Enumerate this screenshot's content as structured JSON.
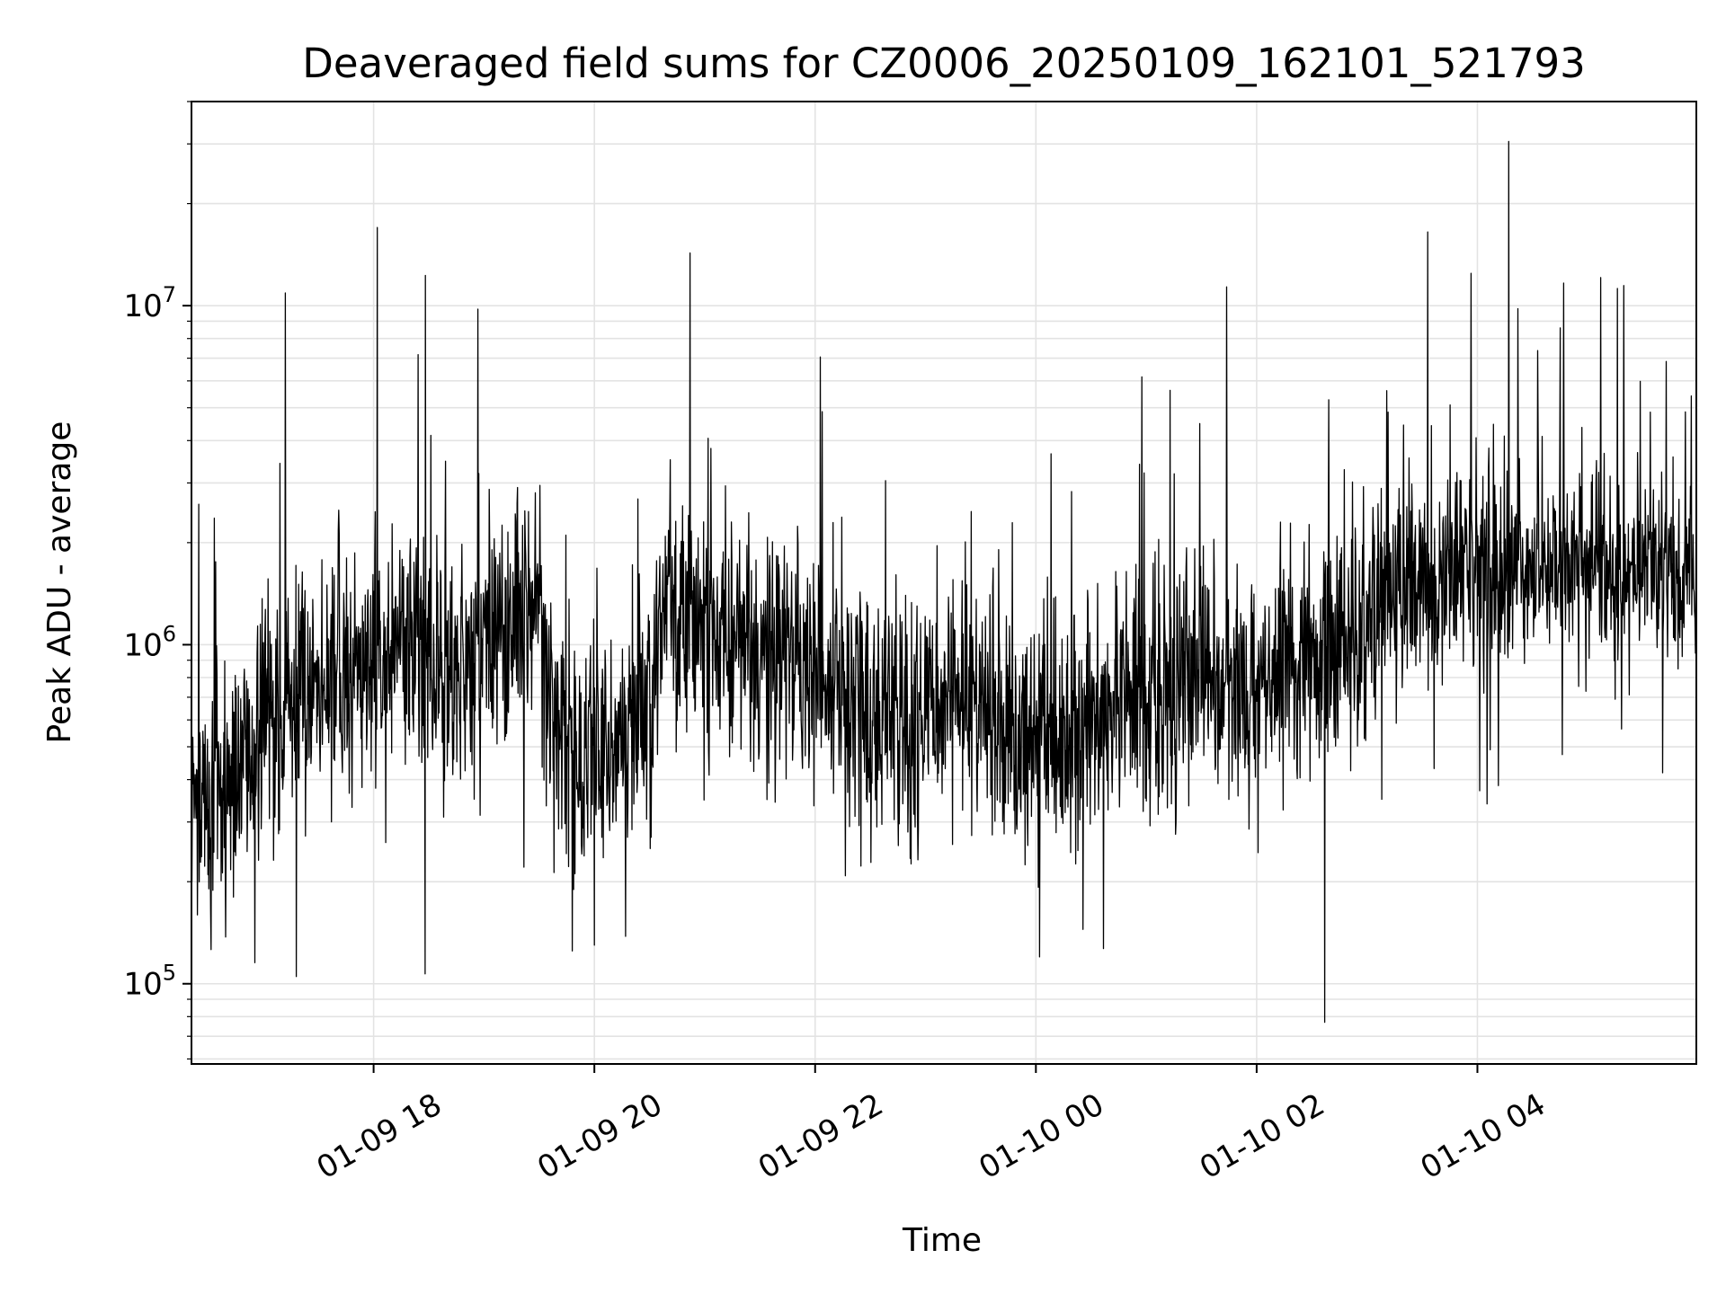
{
  "chart_data": {
    "type": "line",
    "title": "Deaveraged field sums for CZ0006_20250109_162101_521793",
    "xlabel": "Time",
    "ylabel": "Peak ADU - average",
    "yscale": "log",
    "xlim": [
      "2025-01-09 16:21",
      "2025-01-10 05:59"
    ],
    "ylim": [
      58000,
      40000000
    ],
    "grid": true,
    "grid_color": "#e3e3e3",
    "line_color": "#000000",
    "x_ticks": [
      {
        "value": "2025-01-09 18:00",
        "label": "01-09 18"
      },
      {
        "value": "2025-01-09 20:00",
        "label": "01-09 20"
      },
      {
        "value": "2025-01-09 22:00",
        "label": "01-09 22"
      },
      {
        "value": "2025-01-10 00:00",
        "label": "01-10 00"
      },
      {
        "value": "2025-01-10 02:00",
        "label": "01-10 02"
      },
      {
        "value": "2025-01-10 04:00",
        "label": "01-10 04"
      }
    ],
    "y_ticks": [
      {
        "value": 100000,
        "base": "10",
        "exp": "5"
      },
      {
        "value": 1000000,
        "base": "10",
        "exp": "6"
      },
      {
        "value": 10000000,
        "base": "10",
        "exp": "7"
      }
    ],
    "series": [
      {
        "x": [
          "2025-01-09 16:21",
          "2025-01-09 16:30",
          "2025-01-09 16:40",
          "2025-01-09 16:50",
          "2025-01-09 17:00",
          "2025-01-09 17:10",
          "2025-01-09 17:20",
          "2025-01-09 17:30",
          "2025-01-09 17:40",
          "2025-01-09 17:50",
          "2025-01-09 18:00",
          "2025-01-09 18:10",
          "2025-01-09 18:20",
          "2025-01-09 18:30",
          "2025-01-09 18:40",
          "2025-01-09 18:50",
          "2025-01-09 19:00",
          "2025-01-09 19:10",
          "2025-01-09 19:20",
          "2025-01-09 19:30",
          "2025-01-09 19:40",
          "2025-01-09 19:50",
          "2025-01-09 20:00",
          "2025-01-09 20:10",
          "2025-01-09 20:20",
          "2025-01-09 20:30",
          "2025-01-09 20:40",
          "2025-01-09 20:50",
          "2025-01-09 21:00",
          "2025-01-09 21:10",
          "2025-01-09 21:20",
          "2025-01-09 21:30",
          "2025-01-09 21:40",
          "2025-01-09 21:50",
          "2025-01-09 22:00",
          "2025-01-09 22:10",
          "2025-01-09 22:20",
          "2025-01-09 22:30",
          "2025-01-09 22:40",
          "2025-01-09 22:50",
          "2025-01-09 23:00",
          "2025-01-09 23:10",
          "2025-01-09 23:20",
          "2025-01-09 23:30",
          "2025-01-09 23:40",
          "2025-01-09 23:50",
          "2025-01-10 00:00",
          "2025-01-10 00:10",
          "2025-01-10 00:20",
          "2025-01-10 00:30",
          "2025-01-10 00:40",
          "2025-01-10 00:50",
          "2025-01-10 01:00",
          "2025-01-10 01:10",
          "2025-01-10 01:20",
          "2025-01-10 01:30",
          "2025-01-10 01:40",
          "2025-01-10 01:50",
          "2025-01-10 02:00",
          "2025-01-10 02:10",
          "2025-01-10 02:20",
          "2025-01-10 02:30",
          "2025-01-10 02:40",
          "2025-01-10 02:50",
          "2025-01-10 03:00",
          "2025-01-10 03:10",
          "2025-01-10 03:20",
          "2025-01-10 03:30",
          "2025-01-10 03:40",
          "2025-01-10 03:50",
          "2025-01-10 04:00",
          "2025-01-10 04:10",
          "2025-01-10 04:20",
          "2025-01-10 04:30",
          "2025-01-10 04:40",
          "2025-01-10 04:50",
          "2025-01-10 05:00",
          "2025-01-10 05:10",
          "2025-01-10 05:20",
          "2025-01-10 05:30",
          "2025-01-10 05:40",
          "2025-01-10 05:50",
          "2025-01-10 05:59"
        ],
        "y": [
          300000,
          350000,
          380000,
          420000,
          550000,
          600000,
          650000,
          700000,
          720000,
          800000,
          850000,
          900000,
          1000000,
          850000,
          800000,
          850000,
          900000,
          950000,
          1000000,
          1300000,
          550000,
          450000,
          500000,
          500000,
          550000,
          600000,
          1500000,
          1200000,
          1100000,
          1000000,
          950000,
          900000,
          900000,
          850000,
          800000,
          750000,
          700000,
          650000,
          600000,
          550000,
          650000,
          700000,
          750000,
          650000,
          550000,
          500000,
          500000,
          520000,
          550000,
          600000,
          650000,
          700000,
          650000,
          700000,
          800000,
          900000,
          850000,
          800000,
          750000,
          800000,
          900000,
          950000,
          1000000,
          1050000,
          1100000,
          1300000,
          1400000,
          1500000,
          1600000,
          1650000,
          1700000,
          1750000,
          1700000,
          1750000,
          1800000,
          1750000,
          1700000,
          1650000,
          1600000,
          1650000,
          1700000,
          1550000,
          1500000
        ],
        "peaks": [
          {
            "x": "2025-01-09 17:12",
            "y": 10900000
          },
          {
            "x": "2025-01-09 18:02",
            "y": 17000000
          },
          {
            "x": "2025-01-09 20:52",
            "y": 14300000
          },
          {
            "x": "2025-01-10 03:33",
            "y": 16500000
          },
          {
            "x": "2025-01-10 04:17",
            "y": 30500000
          },
          {
            "x": "2025-01-10 04:22",
            "y": 9800000
          },
          {
            "x": "2025-01-10 05:07",
            "y": 12100000
          },
          {
            "x": "2025-01-10 04:45",
            "y": 8600000
          }
        ],
        "troughs": [
          {
            "x": "2025-01-09 17:18",
            "y": 105000
          },
          {
            "x": "2025-01-09 18:28",
            "y": 107000
          },
          {
            "x": "2025-01-09 19:48",
            "y": 125000
          },
          {
            "x": "2025-01-09 20:00",
            "y": 130000
          },
          {
            "x": "2025-01-10 00:02",
            "y": 120000
          },
          {
            "x": "2025-01-10 02:37",
            "y": 77000
          },
          {
            "x": "2025-01-10 03:08",
            "y": 350000
          }
        ]
      }
    ]
  }
}
